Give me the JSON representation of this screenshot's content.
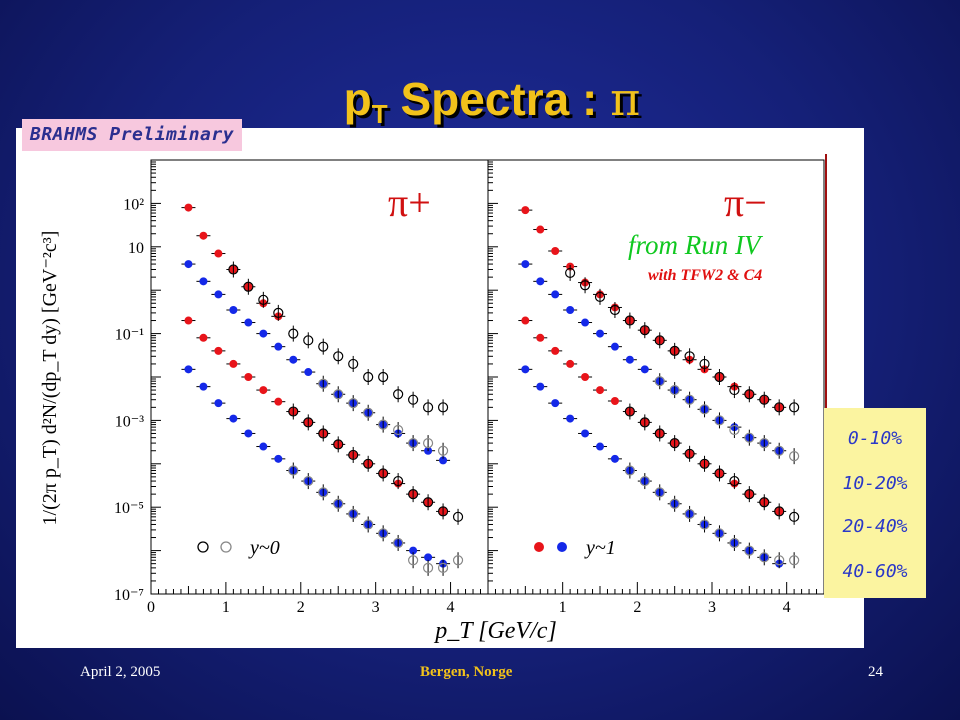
{
  "slide": {
    "title_main": "p",
    "title_sub": "T",
    "title_rest": " Spectra : ",
    "title_pi": "π",
    "badge": "BRAHMS Preliminary",
    "footer_left": "April 2, 2005",
    "footer_center": "Bergen, Norge",
    "footer_right": "24",
    "colors": {
      "title": "#f2c21b",
      "footer_left": "#ffffff",
      "footer_center": "#f2c21b"
    }
  },
  "centrality_legend": [
    "0-10%",
    "10-20%",
    "20-40%",
    "40-60%"
  ],
  "chart_data": {
    "type": "scatter",
    "xlabel": "p_T [GeV/c]",
    "ylabel": "1/(2π p_T) d²N/(dp_T dy) [GeV⁻²c³]",
    "xlim": [
      0,
      4.5
    ],
    "ylim": [
      1e-07,
      1000
    ],
    "yscale": "log",
    "xticks": [
      "0",
      "1",
      "2",
      "3",
      "4"
    ],
    "yticks": [
      "10²",
      "10",
      "10⁻¹",
      "10⁻³",
      "10⁻⁵",
      "10⁻⁷"
    ],
    "open_markers_legend": "y~0",
    "filled_markers_legend": "y~1",
    "panels": [
      {
        "label": "π+",
        "annotation": "",
        "series": [
          {
            "centrality": "0-10%",
            "filled": {
              "x": [
                0.5,
                0.7,
                0.9,
                1.1,
                1.3,
                1.5,
                1.7
              ],
              "y": [
                80,
                18,
                7,
                3,
                1.2,
                0.5,
                0.25
              ]
            },
            "open": {
              "x": [
                1.1,
                1.3,
                1.5,
                1.7,
                1.9,
                2.1,
                2.3,
                2.5,
                2.7,
                2.9,
                3.1,
                3.3,
                3.5,
                3.7,
                3.9
              ],
              "y": [
                3,
                1.2,
                0.6,
                0.3,
                0.1,
                0.07,
                0.05,
                0.03,
                0.02,
                0.01,
                0.01,
                0.004,
                0.003,
                0.002,
                0.002
              ]
            }
          },
          {
            "centrality": "10-20%",
            "filled": {
              "x": [
                0.5,
                0.7,
                0.9,
                1.1,
                1.3,
                1.5,
                1.7,
                1.9,
                2.1,
                2.3,
                2.5,
                2.7,
                2.9,
                3.1,
                3.3,
                3.5,
                3.7,
                3.9
              ],
              "y": [
                4,
                1.6,
                0.8,
                0.35,
                0.18,
                0.1,
                0.05,
                0.025,
                0.013,
                0.007,
                0.004,
                0.0025,
                0.0015,
                0.0008,
                0.0005,
                0.0003,
                0.0002,
                0.00012
              ]
            },
            "open": {
              "x": [
                2.3,
                2.5,
                2.7,
                2.9,
                3.1,
                3.3,
                3.5,
                3.7,
                3.9
              ],
              "y": [
                0.007,
                0.004,
                0.0025,
                0.0015,
                0.0008,
                0.0006,
                0.0003,
                0.0003,
                0.0002
              ]
            }
          },
          {
            "centrality": "20-40%",
            "filled": {
              "x": [
                0.5,
                0.7,
                0.9,
                1.1,
                1.3,
                1.5,
                1.7,
                1.9,
                2.1,
                2.3,
                2.5,
                2.7,
                2.9,
                3.1,
                3.3,
                3.5,
                3.7,
                3.9
              ],
              "y": [
                0.2,
                0.08,
                0.04,
                0.02,
                0.01,
                0.005,
                0.0027,
                0.0016,
                0.0009,
                0.0005,
                0.00028,
                0.00016,
                0.0001,
                6e-05,
                3.5e-05,
                2e-05,
                1.3e-05,
                8e-06
              ]
            },
            "open": {
              "x": [
                1.9,
                2.1,
                2.3,
                2.5,
                2.7,
                2.9,
                3.1,
                3.3,
                3.5,
                3.7,
                3.9,
                4.1
              ],
              "y": [
                0.0016,
                0.0009,
                0.0005,
                0.00028,
                0.00016,
                0.0001,
                6e-05,
                4e-05,
                2e-05,
                1.3e-05,
                8e-06,
                6e-06
              ]
            }
          },
          {
            "centrality": "40-60%",
            "filled": {
              "x": [
                0.5,
                0.7,
                0.9,
                1.1,
                1.3,
                1.5,
                1.7,
                1.9,
                2.1,
                2.3,
                2.5,
                2.7,
                2.9,
                3.1,
                3.3,
                3.5,
                3.7,
                3.9
              ],
              "y": [
                0.015,
                0.006,
                0.0025,
                0.0011,
                0.0005,
                0.00025,
                0.00013,
                7e-05,
                4e-05,
                2.2e-05,
                1.2e-05,
                7e-06,
                4e-06,
                2.5e-06,
                1.5e-06,
                1e-06,
                7e-07,
                5e-07
              ]
            },
            "open": {
              "x": [
                1.9,
                2.1,
                2.3,
                2.5,
                2.7,
                2.9,
                3.1,
                3.3,
                3.5,
                3.7,
                3.9,
                4.1
              ],
              "y": [
                7e-05,
                4e-05,
                2.2e-05,
                1.2e-05,
                7e-06,
                4e-06,
                2.5e-06,
                1.5e-06,
                6e-07,
                4e-07,
                4e-07,
                6e-07
              ]
            }
          }
        ]
      },
      {
        "label": "π−",
        "annotation": "from Run IV",
        "annotation_sub": "with TFW2 & C4",
        "series": [
          {
            "centrality": "0-10%",
            "filled": {
              "x": [
                0.5,
                0.7,
                0.9,
                1.1,
                1.3,
                1.5,
                1.7,
                1.9,
                2.1,
                2.3,
                2.5,
                2.7,
                2.9,
                3.1,
                3.3,
                3.5,
                3.7,
                3.9
              ],
              "y": [
                70,
                25,
                8,
                3.5,
                1.5,
                0.8,
                0.4,
                0.2,
                0.12,
                0.07,
                0.04,
                0.025,
                0.015,
                0.01,
                0.006,
                0.004,
                0.003,
                0.002
              ]
            },
            "open": {
              "x": [
                1.1,
                1.3,
                1.5,
                1.7,
                1.9,
                2.1,
                2.3,
                2.5,
                2.7,
                2.9,
                3.1,
                3.3,
                3.5,
                3.7,
                3.9,
                4.1
              ],
              "y": [
                2.5,
                1.3,
                0.7,
                0.35,
                0.2,
                0.12,
                0.07,
                0.04,
                0.03,
                0.02,
                0.01,
                0.005,
                0.004,
                0.003,
                0.002,
                0.002
              ]
            }
          },
          {
            "centrality": "10-20%",
            "filled": {
              "x": [
                0.5,
                0.7,
                0.9,
                1.1,
                1.3,
                1.5,
                1.7,
                1.9,
                2.1,
                2.3,
                2.5,
                2.7,
                2.9,
                3.1,
                3.3,
                3.5,
                3.7,
                3.9
              ],
              "y": [
                4,
                1.6,
                0.8,
                0.35,
                0.18,
                0.1,
                0.05,
                0.025,
                0.015,
                0.008,
                0.005,
                0.003,
                0.0018,
                0.001,
                0.0007,
                0.0004,
                0.0003,
                0.0002
              ]
            },
            "open": {
              "x": [
                2.3,
                2.5,
                2.7,
                2.9,
                3.1,
                3.3,
                3.5,
                3.7,
                3.9,
                4.1
              ],
              "y": [
                0.008,
                0.005,
                0.003,
                0.0018,
                0.001,
                0.0006,
                0.0004,
                0.0003,
                0.0002,
                0.00015
              ]
            }
          },
          {
            "centrality": "20-40%",
            "filled": {
              "x": [
                0.5,
                0.7,
                0.9,
                1.1,
                1.3,
                1.5,
                1.7,
                1.9,
                2.1,
                2.3,
                2.5,
                2.7,
                2.9,
                3.1,
                3.3,
                3.5,
                3.7,
                3.9
              ],
              "y": [
                0.2,
                0.08,
                0.04,
                0.02,
                0.01,
                0.005,
                0.0028,
                0.0016,
                0.0009,
                0.0005,
                0.0003,
                0.00017,
                0.0001,
                6e-05,
                3.5e-05,
                2e-05,
                1.3e-05,
                8e-06
              ]
            },
            "open": {
              "x": [
                1.9,
                2.1,
                2.3,
                2.5,
                2.7,
                2.9,
                3.1,
                3.3,
                3.5,
                3.7,
                3.9,
                4.1
              ],
              "y": [
                0.0016,
                0.0009,
                0.0005,
                0.0003,
                0.00017,
                0.0001,
                6e-05,
                4e-05,
                2e-05,
                1.3e-05,
                8e-06,
                6e-06
              ]
            }
          },
          {
            "centrality": "40-60%",
            "filled": {
              "x": [
                0.5,
                0.7,
                0.9,
                1.1,
                1.3,
                1.5,
                1.7,
                1.9,
                2.1,
                2.3,
                2.5,
                2.7,
                2.9,
                3.1,
                3.3,
                3.5,
                3.7,
                3.9
              ],
              "y": [
                0.015,
                0.006,
                0.0025,
                0.0011,
                0.0005,
                0.00025,
                0.00013,
                7e-05,
                4e-05,
                2.2e-05,
                1.2e-05,
                7e-06,
                4e-06,
                2.5e-06,
                1.5e-06,
                1e-06,
                7e-07,
                5e-07
              ]
            },
            "open": {
              "x": [
                1.9,
                2.1,
                2.3,
                2.5,
                2.7,
                2.9,
                3.1,
                3.3,
                3.5,
                3.7,
                3.9,
                4.1
              ],
              "y": [
                7e-05,
                4e-05,
                2.2e-05,
                1.2e-05,
                7e-06,
                4e-06,
                2.5e-06,
                1.5e-06,
                1e-06,
                7e-07,
                6e-07,
                6e-07
              ]
            }
          }
        ]
      }
    ]
  }
}
